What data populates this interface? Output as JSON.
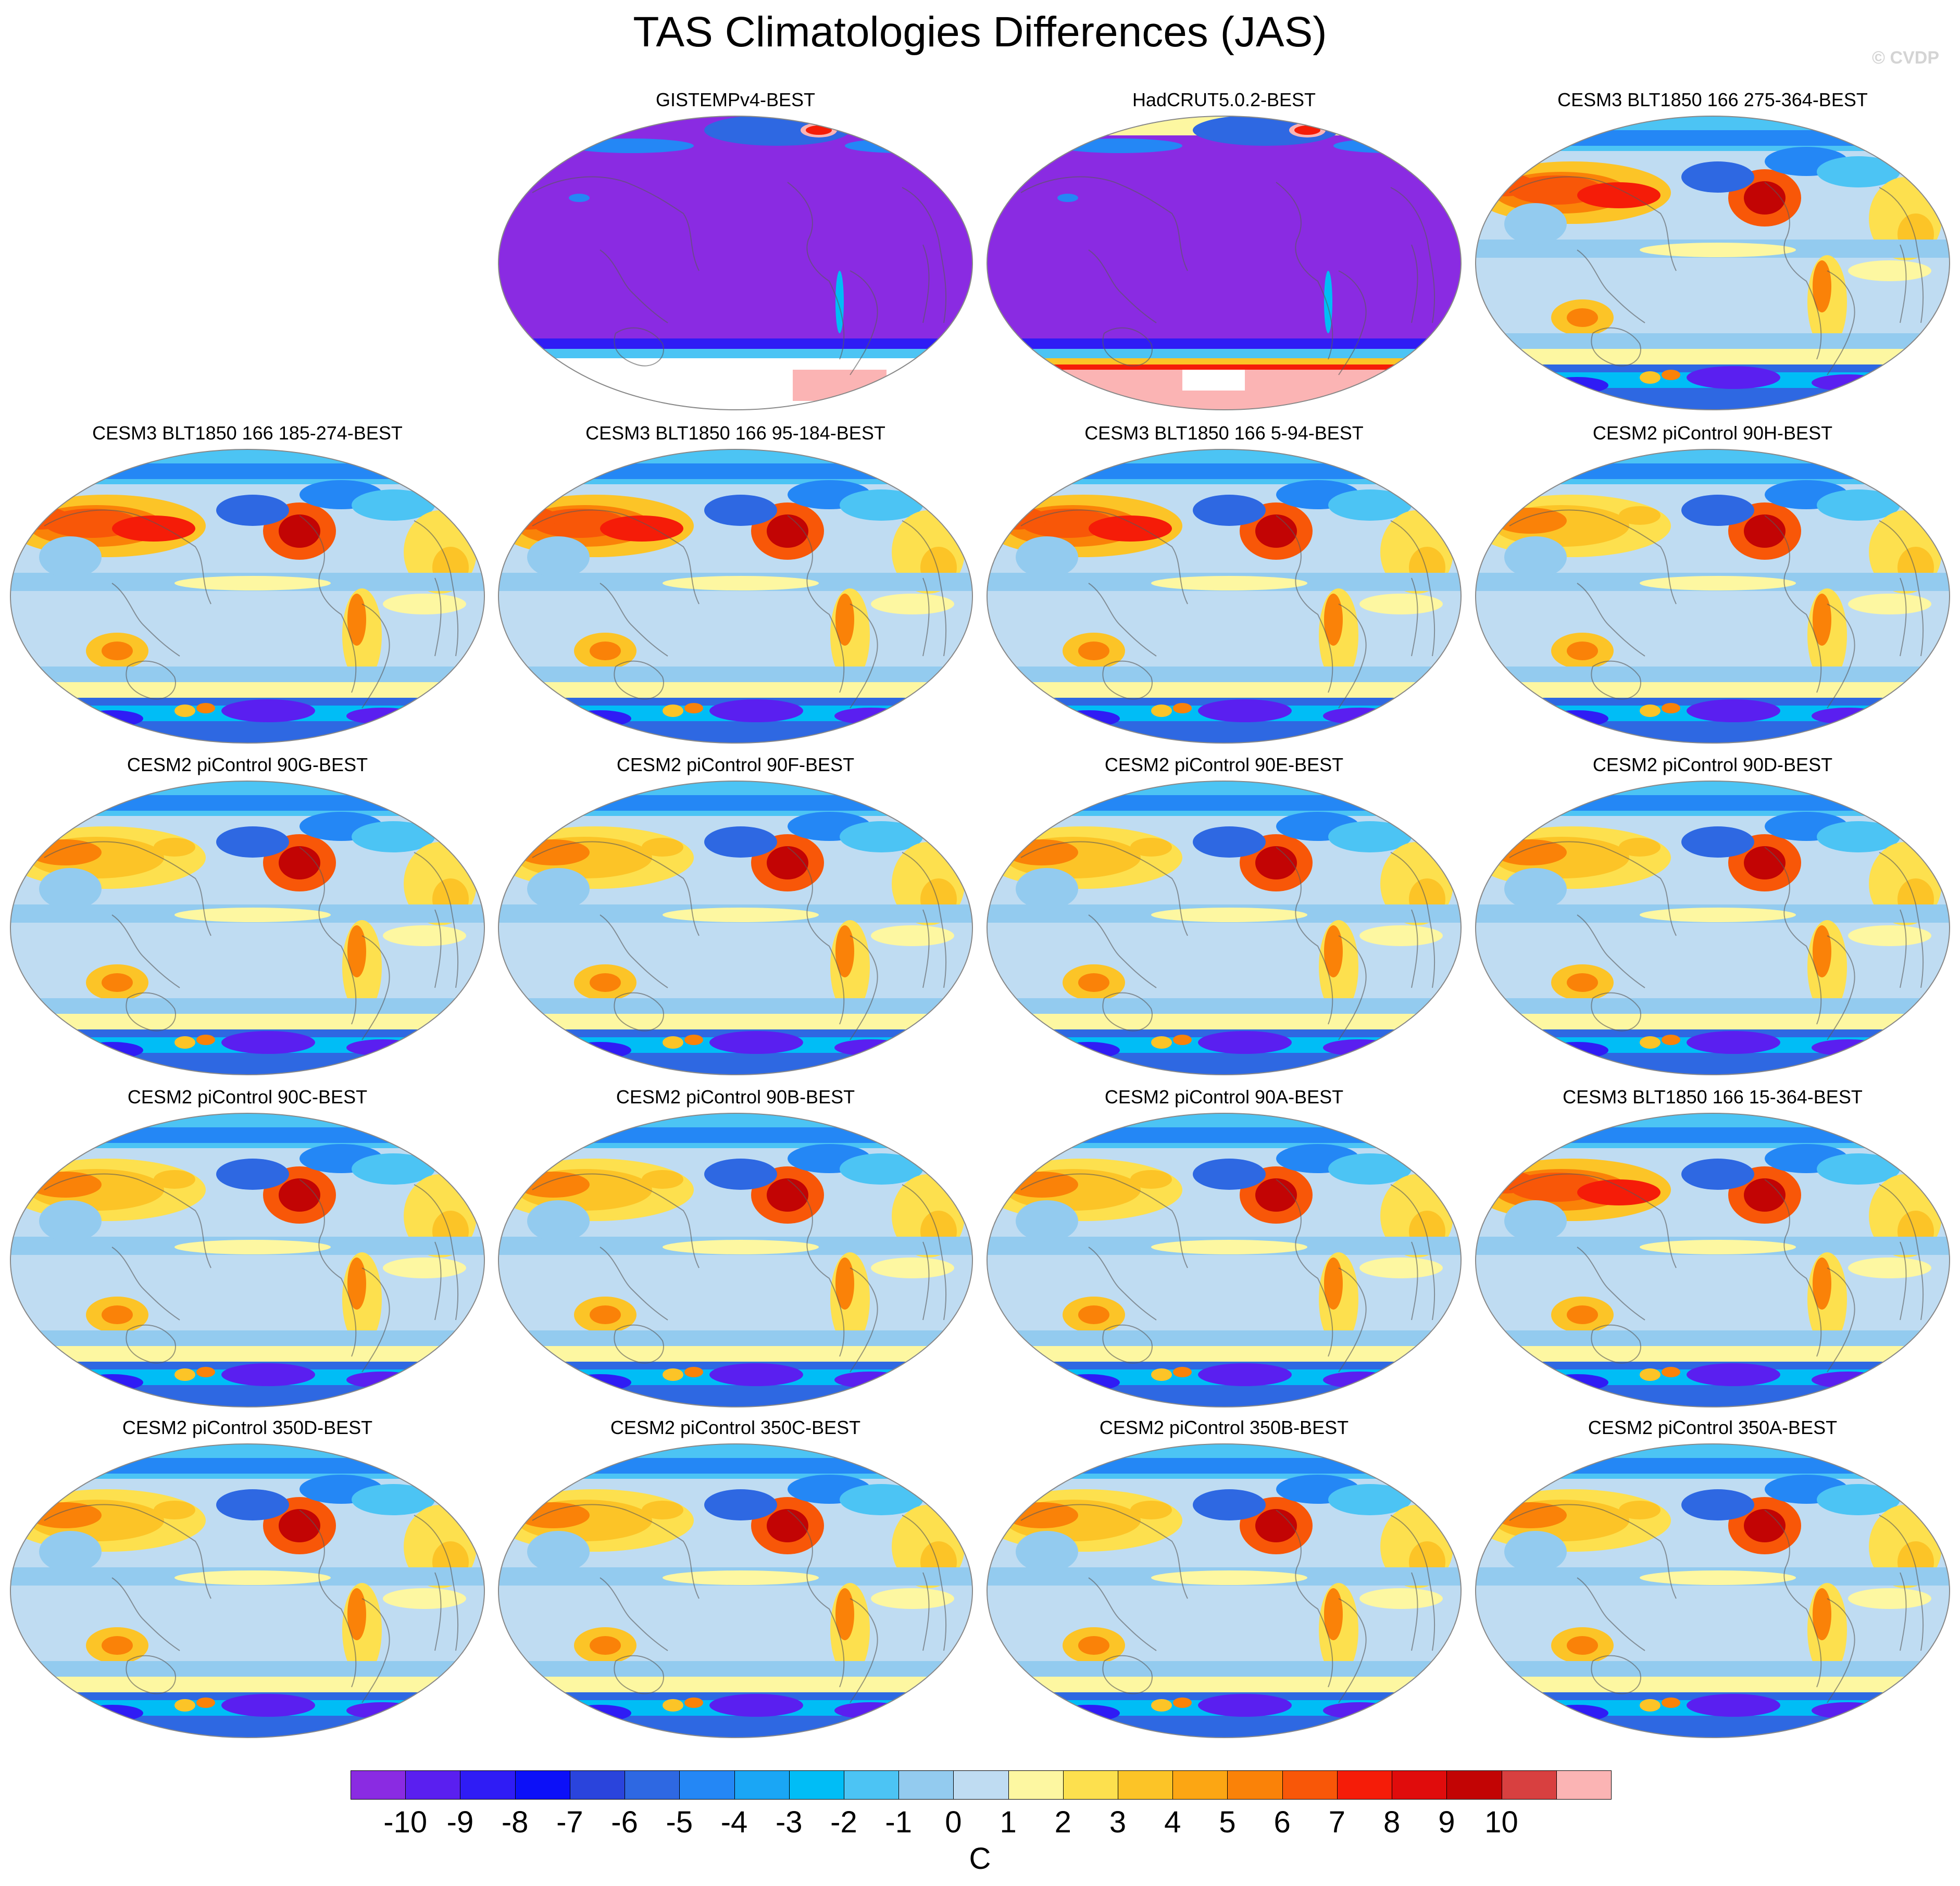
{
  "figure": {
    "title": "TAS Climatologies Differences (JAS)",
    "watermark": "© CVDP"
  },
  "panels": [
    {
      "label": "GISTEMPv4-BEST",
      "style": "obs-gistemp"
    },
    {
      "label": "HadCRUT5.0.2-BEST",
      "style": "obs-hadcrut"
    },
    {
      "label": "CESM3 BLT1850 166 275-364-BEST",
      "style": "cesm3"
    },
    {
      "label": "CESM3 BLT1850 166 185-274-BEST",
      "style": "cesm3"
    },
    {
      "label": "CESM3 BLT1850 166 95-184-BEST",
      "style": "cesm3"
    },
    {
      "label": "CESM3 BLT1850 166 5-94-BEST",
      "style": "cesm3"
    },
    {
      "label": "CESM2 piControl 90H-BEST",
      "style": "cesm2"
    },
    {
      "label": "CESM2 piControl 90G-BEST",
      "style": "cesm2"
    },
    {
      "label": "CESM2 piControl 90F-BEST",
      "style": "cesm2"
    },
    {
      "label": "CESM2 piControl 90E-BEST",
      "style": "cesm2"
    },
    {
      "label": "CESM2 piControl 90D-BEST",
      "style": "cesm2"
    },
    {
      "label": "CESM2 piControl 90C-BEST",
      "style": "cesm2"
    },
    {
      "label": "CESM2 piControl 90B-BEST",
      "style": "cesm2"
    },
    {
      "label": "CESM2 piControl 90A-BEST",
      "style": "cesm2"
    },
    {
      "label": "CESM3 BLT1850 166 15-364-BEST",
      "style": "cesm3"
    },
    {
      "label": "CESM2 piControl 350D-BEST",
      "style": "cesm2"
    },
    {
      "label": "CESM2 piControl 350C-BEST",
      "style": "cesm2"
    },
    {
      "label": "CESM2 piControl 350B-BEST",
      "style": "cesm2"
    },
    {
      "label": "CESM2 piControl 350A-BEST",
      "style": "cesm2"
    }
  ],
  "colorbar": {
    "colors": [
      "#8a2be2",
      "#5a1ff0",
      "#2f1cf5",
      "#0c10f8",
      "#2a44dc",
      "#2e68e2",
      "#2487f5",
      "#1aa6f5",
      "#00bdf6",
      "#4cc4f4",
      "#93cbef",
      "#bfdcf2",
      "#fdf7a1",
      "#fde04e",
      "#fcc427",
      "#fca613",
      "#fa8208",
      "#f85708",
      "#f51c08",
      "#e00c0c",
      "#c20404",
      "#d84040",
      "#fbb4b4"
    ],
    "ticks": [
      "-10",
      "-9",
      "-8",
      "-7",
      "-6",
      "-5",
      "-4",
      "-3",
      "-2",
      "-1",
      "0",
      "1",
      "2",
      "3",
      "4",
      "5",
      "6",
      "7",
      "8",
      "9",
      "10"
    ],
    "units": "C"
  }
}
